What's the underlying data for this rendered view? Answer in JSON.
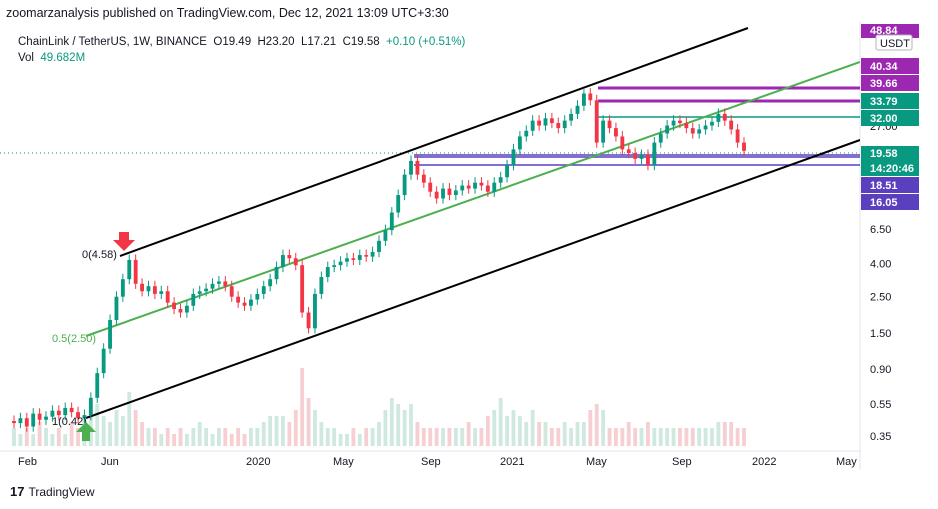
{
  "header": {
    "author_line": "zoomarzanalysis published on TradingView.com, Dec 12, 2021 13:09 UTC+3:30"
  },
  "legend": {
    "symbol": "ChainLink / TetherUS, 1W, BINANCE",
    "open": "O19.49",
    "high": "H23.20",
    "low": "L17.21",
    "close": "C19.58",
    "change": "+0.10 (+0.51%)",
    "vol_label": "Vol",
    "vol_value": "49.682M"
  },
  "currency_badge": "USDT",
  "footer": {
    "brand": "TradingView"
  },
  "fib_labels": {
    "level0": "0(4.58)",
    "level05": "0.5(2.50)",
    "level1": "1(0.42)"
  },
  "colors": {
    "up": "#089981",
    "down": "#f23645",
    "channel": "#000000",
    "midline": "#4caf50",
    "purple": "#9c27b0",
    "teal": "#089981",
    "indigo": "#5b3fbf",
    "arrow_down": "#f23645",
    "arrow_up": "#4caf50"
  },
  "chart_data": {
    "type": "candlestick",
    "symbol": "ChainLink / TetherUS",
    "interval": "1W",
    "exchange": "BINANCE",
    "y_scale": "log",
    "x_ticks": [
      "Feb",
      "Jun",
      "2020",
      "May",
      "Sep",
      "2021",
      "May",
      "Sep",
      "2022",
      "May"
    ],
    "y_ticks": [
      "0.35",
      "0.55",
      "0.90",
      "1.50",
      "2.50",
      "4.00",
      "6.50"
    ],
    "price_tags": [
      {
        "label": "48.84",
        "kind": "purple"
      },
      {
        "label": "40.34",
        "kind": "purple"
      },
      {
        "label": "39.66",
        "kind": "purple"
      },
      {
        "label": "33.79",
        "kind": "teal"
      },
      {
        "label": "32.00",
        "kind": "teal"
      },
      {
        "label": "19.58",
        "kind": "teal"
      },
      {
        "label": "14:20:46",
        "kind": "teal"
      },
      {
        "label": "18.51",
        "kind": "indigo"
      },
      {
        "label": "16.05",
        "kind": "indigo"
      }
    ],
    "horizontal_levels": [
      {
        "price": 39.66,
        "kind": "purple"
      },
      {
        "price": 33.79,
        "kind": "purple"
      },
      {
        "price": 32.0,
        "kind": "teal"
      },
      {
        "price": 19.58,
        "kind": "indigo"
      },
      {
        "price": 18.51,
        "kind": "indigo"
      },
      {
        "price": 16.05,
        "kind": "indigo"
      }
    ],
    "close_series": [
      0.42,
      0.45,
      0.4,
      0.48,
      0.44,
      0.46,
      0.5,
      0.47,
      0.52,
      0.49,
      0.45,
      0.47,
      0.6,
      0.85,
      1.2,
      1.8,
      2.5,
      3.2,
      4.2,
      3.0,
      2.7,
      2.9,
      2.6,
      2.7,
      2.3,
      2.1,
      2.0,
      2.2,
      2.6,
      2.7,
      2.8,
      3.0,
      3.1,
      2.9,
      2.5,
      2.3,
      2.2,
      2.4,
      2.6,
      2.9,
      3.2,
      3.8,
      4.5,
      4.3,
      3.9,
      2.0,
      1.6,
      2.6,
      3.3,
      3.8,
      3.9,
      4.1,
      4.3,
      4.2,
      4.5,
      4.4,
      4.7,
      5.5,
      6.4,
      8.2,
      10.5,
      14.0,
      17.0,
      14.0,
      12.5,
      11.0,
      10.0,
      11.5,
      10.5,
      11.2,
      12.0,
      11.5,
      12.5,
      12.0,
      11.0,
      12.5,
      13.5,
      16.0,
      20.0,
      24.0,
      26.0,
      30.0,
      28.0,
      31.0,
      29.0,
      27.0,
      30.0,
      33.0,
      37.0,
      44.0,
      40.0,
      22.0,
      30.0,
      27.0,
      24.0,
      20.0,
      19.0,
      17.5,
      18.5,
      16.0,
      22.0,
      25.0,
      28.0,
      30.0,
      29.0,
      27.0,
      25.0,
      26.5,
      28.0,
      29.5,
      33.0,
      30.0,
      26.5,
      22.0,
      19.58
    ],
    "volume_series": [
      3,
      2,
      3,
      2,
      4,
      3,
      2,
      3,
      2,
      4,
      3,
      5,
      6,
      7,
      5,
      4,
      6,
      5,
      9,
      6,
      4,
      3,
      3,
      2,
      3,
      2,
      3,
      2,
      3,
      4,
      3,
      2,
      3,
      3,
      2,
      3,
      2,
      3,
      3,
      4,
      5,
      5,
      5,
      4,
      6,
      13,
      8,
      6,
      4,
      3,
      3,
      2,
      2,
      3,
      2,
      3,
      3,
      4,
      6,
      8,
      7,
      6,
      7,
      4,
      3,
      3,
      3,
      3,
      3,
      3,
      3,
      4,
      3,
      3,
      5,
      6,
      8,
      5,
      6,
      5,
      4,
      6,
      4,
      4,
      3,
      3,
      4,
      3,
      4,
      4,
      6,
      7,
      6,
      3,
      3,
      3,
      4,
      3,
      3,
      4,
      3,
      3,
      3,
      3,
      3,
      3,
      3,
      3,
      3,
      3,
      4,
      4,
      4,
      3,
      3
    ],
    "annotations": [
      "0(4.58)",
      "0.5(2.50)",
      "1(0.42)"
    ]
  }
}
